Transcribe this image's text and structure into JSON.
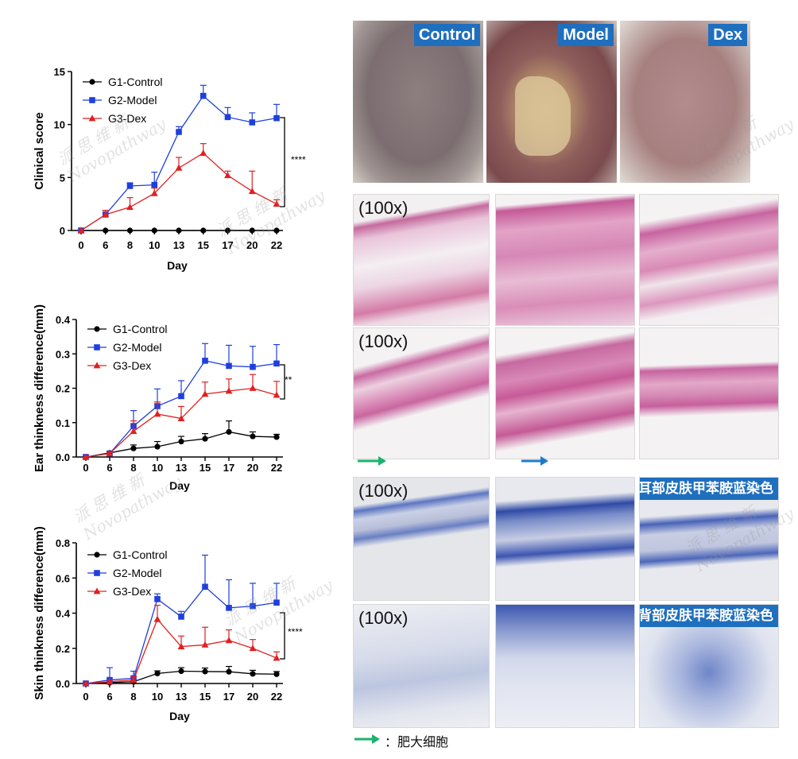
{
  "chart_data": [
    {
      "type": "line",
      "ylabel": "Clinical score",
      "xlabel": "Day",
      "x": [
        0,
        6,
        8,
        10,
        13,
        15,
        17,
        20,
        22
      ],
      "ylim": [
        0,
        15
      ],
      "yticks": [
        0,
        5,
        10,
        15
      ],
      "significance": "****",
      "series": [
        {
          "name": "G1-Control",
          "color": "#000000",
          "marker": "circle",
          "values": [
            0,
            0,
            0,
            0,
            0,
            0,
            0,
            0,
            0
          ],
          "errors": [
            0,
            0,
            0,
            0,
            0,
            0,
            0,
            0,
            0
          ]
        },
        {
          "name": "G2-Model",
          "color": "#1f3fdd",
          "marker": "square",
          "values": [
            0,
            1.5,
            4.2,
            4.3,
            9.3,
            12.7,
            10.7,
            10.2,
            10.6
          ],
          "errors": [
            0,
            0.4,
            0.3,
            1.2,
            0.5,
            1.0,
            0.9,
            0.9,
            1.3
          ]
        },
        {
          "name": "G3-Dex",
          "color": "#e02020",
          "marker": "triangle",
          "values": [
            0,
            1.5,
            2.2,
            3.5,
            5.9,
            7.3,
            5.2,
            3.7,
            2.5
          ],
          "errors": [
            0,
            0.4,
            0.9,
            0.5,
            1.0,
            0.9,
            0.4,
            1.9,
            0.4
          ]
        }
      ]
    },
    {
      "type": "line",
      "ylabel": "Ear thinkness difference(mm)",
      "xlabel": "Day",
      "x": [
        0,
        6,
        8,
        10,
        13,
        15,
        17,
        20,
        22
      ],
      "ylim": [
        0,
        0.4
      ],
      "yticks": [
        0.0,
        0.1,
        0.2,
        0.3,
        0.4
      ],
      "significance": "**",
      "series": [
        {
          "name": "G1-Control",
          "color": "#000000",
          "marker": "circle",
          "values": [
            0,
            0.012,
            0.025,
            0.03,
            0.045,
            0.053,
            0.073,
            0.06,
            0.058
          ],
          "errors": [
            0,
            0.004,
            0.01,
            0.015,
            0.015,
            0.015,
            0.032,
            0.013,
            0.008
          ]
        },
        {
          "name": "G2-Model",
          "color": "#1f3fdd",
          "marker": "square",
          "values": [
            0,
            0.01,
            0.09,
            0.148,
            0.177,
            0.28,
            0.265,
            0.262,
            0.272
          ],
          "errors": [
            0,
            0.004,
            0.045,
            0.05,
            0.045,
            0.05,
            0.06,
            0.06,
            0.055
          ]
        },
        {
          "name": "G3-Dex",
          "color": "#e02020",
          "marker": "triangle",
          "values": [
            0,
            0.01,
            0.075,
            0.125,
            0.112,
            0.183,
            0.192,
            0.2,
            0.18
          ],
          "errors": [
            0,
            0.004,
            0.03,
            0.035,
            0.035,
            0.035,
            0.035,
            0.04,
            0.04
          ]
        }
      ]
    },
    {
      "type": "line",
      "ylabel": "Skin thinkness difference(mm)",
      "xlabel": "Day",
      "x": [
        0,
        6,
        8,
        10,
        13,
        15,
        17,
        20,
        22
      ],
      "ylim": [
        0,
        0.8
      ],
      "yticks": [
        0.0,
        0.2,
        0.4,
        0.6,
        0.8
      ],
      "significance": "****",
      "series": [
        {
          "name": "G1-Control",
          "color": "#000000",
          "marker": "circle",
          "values": [
            0,
            0.005,
            0.01,
            0.057,
            0.07,
            0.068,
            0.067,
            0.055,
            0.053
          ],
          "errors": [
            0,
            0.005,
            0.01,
            0.015,
            0.02,
            0.02,
            0.03,
            0.02,
            0.015
          ]
        },
        {
          "name": "G2-Model",
          "color": "#1f3fdd",
          "marker": "square",
          "values": [
            0,
            0.02,
            0.03,
            0.48,
            0.38,
            0.55,
            0.43,
            0.44,
            0.46
          ],
          "errors": [
            0,
            0.07,
            0.04,
            0.03,
            0.03,
            0.18,
            0.16,
            0.13,
            0.11
          ]
        },
        {
          "name": "G3-Dex",
          "color": "#e02020",
          "marker": "triangle",
          "values": [
            0,
            0.01,
            0.02,
            0.365,
            0.21,
            0.22,
            0.245,
            0.2,
            0.145
          ],
          "errors": [
            0,
            0.01,
            0.02,
            0.08,
            0.06,
            0.1,
            0.06,
            0.05,
            0.035
          ]
        }
      ]
    }
  ],
  "photos": {
    "labels": [
      "Control",
      "Model",
      "Dex"
    ]
  },
  "histology": {
    "magnification": "(100x)",
    "ear_stain_label": "耳部皮肤甲苯胺蓝染色",
    "back_stain_label": "背部皮肤甲苯胺蓝染色",
    "mast_cell_legend": "：肥大细胞"
  },
  "watermark": {
    "cn": "派 思 维 新",
    "en": "Novopathway"
  }
}
